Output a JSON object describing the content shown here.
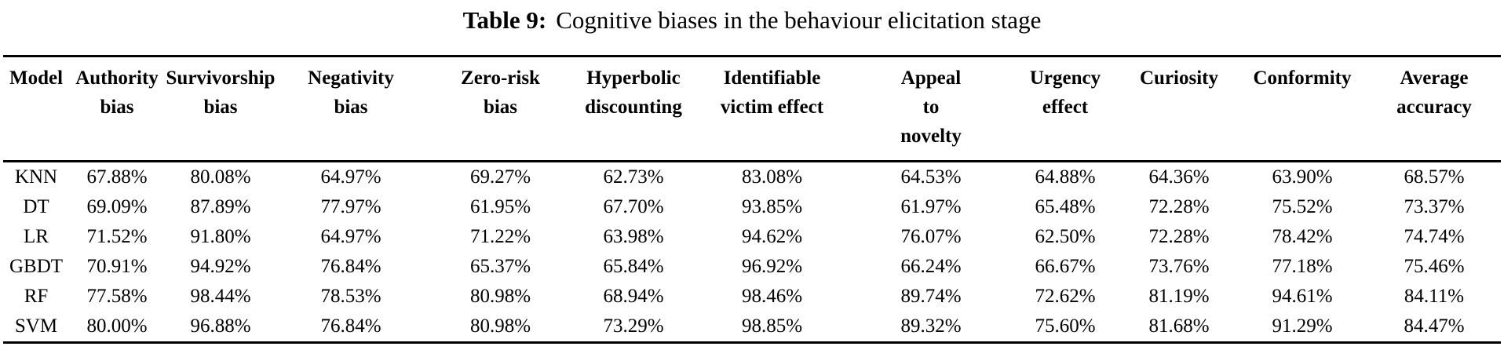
{
  "caption": {
    "label": "Table 9:",
    "text": "Cognitive biases in the behaviour elicitation stage"
  },
  "table": {
    "columns": [
      {
        "key": "model",
        "lines": [
          "Model"
        ]
      },
      {
        "key": "authority-bias",
        "lines": [
          "Authority",
          "bias"
        ]
      },
      {
        "key": "survivorship-bias",
        "lines": [
          "Survivorship",
          "bias"
        ]
      },
      {
        "key": "negativity-bias",
        "lines": [
          "Negativity",
          "bias"
        ]
      },
      {
        "key": "zero-risk-bias",
        "lines": [
          "Zero-risk",
          "bias"
        ]
      },
      {
        "key": "hyperbolic-discounting",
        "lines": [
          "Hyperbolic",
          "discounting"
        ]
      },
      {
        "key": "identifiable-victim-effect",
        "lines": [
          "Identifiable",
          "victim effect"
        ]
      },
      {
        "key": "appeal-to-novelty",
        "lines": [
          "Appeal",
          "to",
          "novelty"
        ]
      },
      {
        "key": "urgency-effect",
        "lines": [
          "Urgency",
          "effect"
        ]
      },
      {
        "key": "curiosity",
        "lines": [
          "Curiosity"
        ]
      },
      {
        "key": "conformity",
        "lines": [
          "Conformity"
        ]
      },
      {
        "key": "average-accuracy",
        "lines": [
          "Average",
          "accuracy"
        ]
      }
    ],
    "rows": [
      {
        "model": "KNN",
        "values": [
          "67.88%",
          "80.08%",
          "64.97%",
          "69.27%",
          "62.73%",
          "83.08%",
          "64.53%",
          "64.88%",
          "64.36%",
          "63.90%",
          "68.57%"
        ]
      },
      {
        "model": "DT",
        "values": [
          "69.09%",
          "87.89%",
          "77.97%",
          "61.95%",
          "67.70%",
          "93.85%",
          "61.97%",
          "65.48%",
          "72.28%",
          "75.52%",
          "73.37%"
        ]
      },
      {
        "model": "LR",
        "values": [
          "71.52%",
          "91.80%",
          "64.97%",
          "71.22%",
          "63.98%",
          "94.62%",
          "76.07%",
          "62.50%",
          "72.28%",
          "78.42%",
          "74.74%"
        ]
      },
      {
        "model": "GBDT",
        "values": [
          "70.91%",
          "94.92%",
          "76.84%",
          "65.37%",
          "65.84%",
          "96.92%",
          "66.24%",
          "66.67%",
          "73.76%",
          "77.18%",
          "75.46%"
        ]
      },
      {
        "model": "RF",
        "values": [
          "77.58%",
          "98.44%",
          "78.53%",
          "80.98%",
          "68.94%",
          "98.46%",
          "89.74%",
          "72.62%",
          "81.19%",
          "94.61%",
          "84.11%"
        ]
      },
      {
        "model": "SVM",
        "values": [
          "80.00%",
          "96.88%",
          "76.84%",
          "80.98%",
          "73.29%",
          "98.85%",
          "89.32%",
          "75.60%",
          "81.68%",
          "91.29%",
          "84.47%"
        ]
      }
    ]
  }
}
